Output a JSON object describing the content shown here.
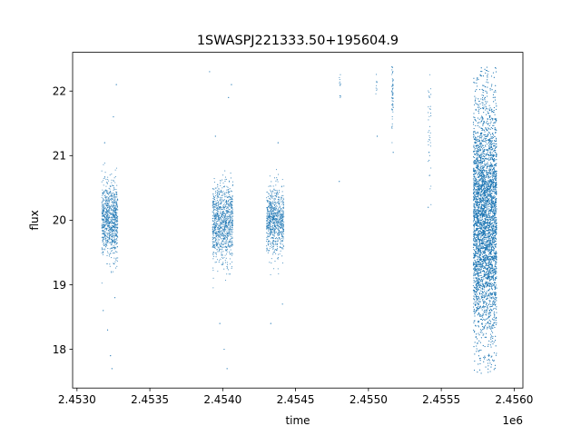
{
  "chart_data": {
    "type": "scatter",
    "title": "1SWASPJ221333.50+195604.9",
    "xlabel": "time",
    "ylabel": "flux",
    "x_offset_label": "1e6",
    "xlim": [
      2.45297,
      2.45606
    ],
    "ylim": [
      17.4,
      22.6
    ],
    "xticks": [
      2.453,
      2.4535,
      2.454,
      2.4545,
      2.455,
      2.4555,
      2.456
    ],
    "xtick_labels": [
      "2.4530",
      "2.4535",
      "2.4540",
      "2.4545",
      "2.4550",
      "2.4555",
      "2.4560"
    ],
    "yticks": [
      18,
      19,
      20,
      21,
      22
    ],
    "ytick_labels": [
      "18",
      "19",
      "20",
      "21",
      "22"
    ],
    "grid": false,
    "marker_color": "#1f77b4",
    "clusters": [
      {
        "x_start": 2.45317,
        "x_end": 2.45328,
        "center": 20.0,
        "spread": 0.28,
        "count": 900,
        "outliers": [
          [
            2.45319,
            21.2
          ],
          [
            2.45325,
            21.6
          ],
          [
            2.45327,
            22.1
          ],
          [
            2.45321,
            18.3
          ],
          [
            2.45324,
            17.7
          ],
          [
            2.45326,
            18.8
          ],
          [
            2.45318,
            18.6
          ],
          [
            2.45323,
            17.9
          ]
        ]
      },
      {
        "x_start": 2.45393,
        "x_end": 2.45407,
        "center": 19.95,
        "spread": 0.3,
        "count": 1000,
        "outliers": [
          [
            2.45395,
            21.3
          ],
          [
            2.45404,
            21.9
          ],
          [
            2.45406,
            22.1
          ],
          [
            2.45401,
            18.0
          ],
          [
            2.45403,
            17.7
          ],
          [
            2.45398,
            18.4
          ],
          [
            2.45391,
            22.3
          ]
        ]
      },
      {
        "x_start": 2.4543,
        "x_end": 2.45442,
        "center": 20.0,
        "spread": 0.25,
        "count": 800,
        "outliers": [
          [
            2.45438,
            21.2
          ],
          [
            2.45433,
            18.4
          ],
          [
            2.45441,
            18.7
          ]
        ]
      },
      {
        "x_start": 2.4548,
        "x_end": 2.45481,
        "center": 22.1,
        "spread": 0.12,
        "count": 12,
        "outliers": [
          [
            2.4548,
            20.6
          ]
        ]
      },
      {
        "x_start": 2.45505,
        "x_end": 2.45506,
        "center": 22.1,
        "spread": 0.12,
        "count": 10,
        "outliers": [
          [
            2.45506,
            21.3
          ]
        ]
      },
      {
        "x_start": 2.45516,
        "x_end": 2.45517,
        "center": 21.9,
        "spread": 0.25,
        "count": 60,
        "outliers": [
          [
            2.45517,
            21.05
          ]
        ]
      },
      {
        "x_start": 2.45541,
        "x_end": 2.45543,
        "center": 21.2,
        "spread": 0.45,
        "count": 40,
        "outliers": [
          [
            2.45541,
            20.2
          ]
        ]
      },
      {
        "x_start": 2.45572,
        "x_end": 2.45588,
        "center": 20.0,
        "spread": 0.9,
        "count": 7000,
        "outliers": []
      }
    ]
  }
}
